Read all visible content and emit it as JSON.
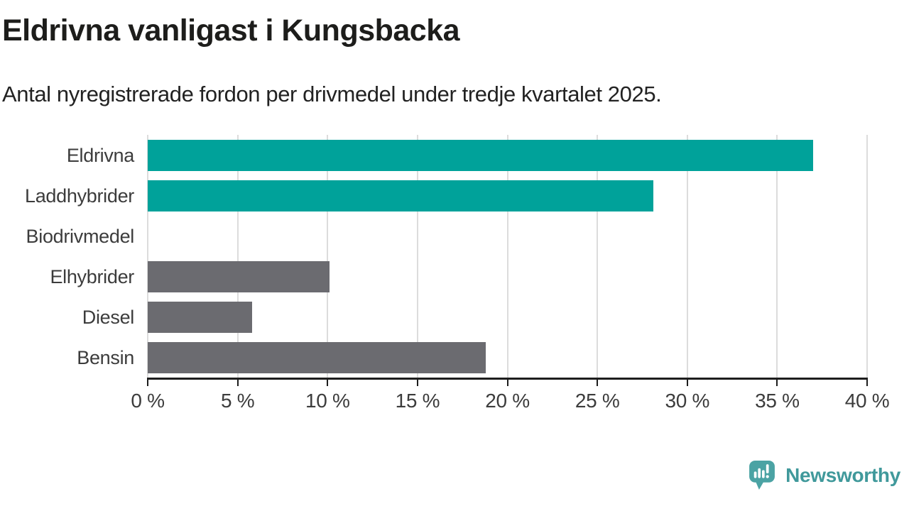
{
  "header": {
    "title": "Eldrivna vanligast i Kungsbacka",
    "subtitle": "Antal nyregistrerade fordon per drivmedel under tredje kvartalet 2025."
  },
  "chart_data": {
    "type": "bar",
    "orientation": "horizontal",
    "title": "Eldrivna vanligast i Kungsbacka",
    "subtitle": "Antal nyregistrerade fordon per drivmedel under tredje kvartalet 2025.",
    "categories": [
      "Eldrivna",
      "Laddhybrider",
      "Biodrivmedel",
      "Elhybrider",
      "Diesel",
      "Bensin"
    ],
    "values": [
      37.0,
      28.1,
      0,
      10.1,
      5.8,
      18.8
    ],
    "unit": "%",
    "bar_colors": [
      "#00A29A",
      "#00A29A",
      "#6B6B70",
      "#6B6B70",
      "#6B6B70",
      "#6B6B70"
    ],
    "highlight_color": "#00A29A",
    "default_color": "#6B6B70",
    "xlim": [
      0,
      40
    ],
    "ticks": [
      0,
      5,
      10,
      15,
      20,
      25,
      30,
      35,
      40
    ],
    "tick_labels": [
      "0 %",
      "5 %",
      "10 %",
      "15 %",
      "20 %",
      "25 %",
      "30 %",
      "35 %",
      "40 %"
    ],
    "grid": true,
    "legend": "none",
    "grid_color": "#DCDCDC",
    "axis_color": "#1D1D1D",
    "label_color": "#3C3C3C"
  },
  "branding": {
    "name": "Newsworthy",
    "logo_icon": "newsworthy-speech-bubble-bar-chart-icon",
    "icon_color": "#4BA3A4",
    "text_color": "#40999B",
    "icon_glyph_color": "#FFFFFF"
  }
}
